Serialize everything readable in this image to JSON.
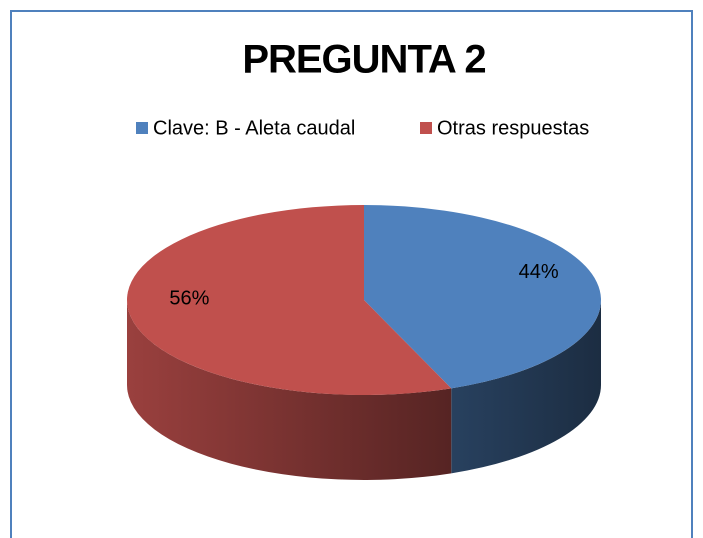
{
  "chart_data": {
    "type": "pie",
    "title": "PREGUNTA 2",
    "categories": [
      "Clave: B - Aleta caudal",
      "Otras respuestas"
    ],
    "values": [
      44,
      56
    ],
    "value_labels": [
      "44%",
      "56%"
    ],
    "colors": [
      "#4f81bd",
      "#c0504d"
    ],
    "legend": "top"
  }
}
